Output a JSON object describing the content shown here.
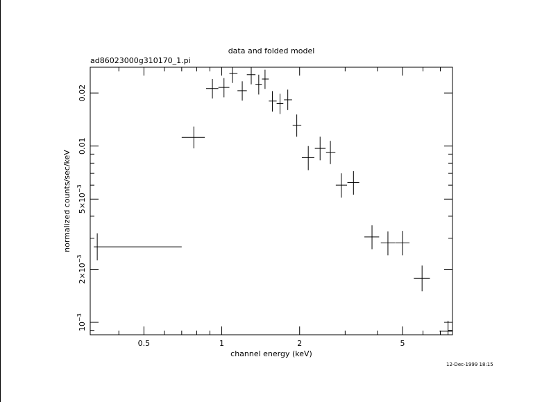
{
  "chart_data": {
    "type": "scatter",
    "title": "data and folded model",
    "subtitle": "ad86023000g310170_1.pi",
    "xlabel": "channel energy (keV)",
    "ylabel": "normalized counts/sec/keV",
    "timestamp": "12-Dec-1999 18:15",
    "x_scale": "log",
    "y_scale": "log",
    "xlim": [
      0.31,
      7.8
    ],
    "ylim": [
      0.00085,
      0.028
    ],
    "x_ticks": [
      {
        "value": 0.5,
        "label": "0.5"
      },
      {
        "value": 1,
        "label": "1"
      },
      {
        "value": 2,
        "label": "2"
      },
      {
        "value": 5,
        "label": "5"
      }
    ],
    "y_ticks": [
      {
        "value": 0.001,
        "label": "10",
        "sup": "−3"
      },
      {
        "value": 0.002,
        "label": "2×10",
        "sup": "−3"
      },
      {
        "value": 0.005,
        "label": "5×10",
        "sup": "−3"
      },
      {
        "value": 0.01,
        "label": "0.01",
        "sup": ""
      },
      {
        "value": 0.02,
        "label": "0.02",
        "sup": ""
      }
    ],
    "series": [
      {
        "points": [
          {
            "x": 0.33,
            "xlo": 0.32,
            "xhi": 0.7,
            "y": 0.00268,
            "ylo": 0.00225,
            "yhi": 0.0032
          },
          {
            "x": 0.78,
            "xlo": 0.7,
            "xhi": 0.86,
            "y": 0.0112,
            "ylo": 0.0097,
            "yhi": 0.0129
          },
          {
            "x": 0.92,
            "xlo": 0.87,
            "xhi": 0.97,
            "y": 0.0212,
            "ylo": 0.0186,
            "yhi": 0.024
          },
          {
            "x": 1.02,
            "xlo": 0.97,
            "xhi": 1.07,
            "y": 0.0215,
            "ylo": 0.0189,
            "yhi": 0.0243
          },
          {
            "x": 1.1,
            "xlo": 1.07,
            "xhi": 1.15,
            "y": 0.0258,
            "ylo": 0.0228,
            "yhi": 0.029
          },
          {
            "x": 1.2,
            "xlo": 1.15,
            "xhi": 1.25,
            "y": 0.0206,
            "ylo": 0.0181,
            "yhi": 0.0233
          },
          {
            "x": 1.3,
            "xlo": 1.25,
            "xhi": 1.35,
            "y": 0.0254,
            "ylo": 0.0224,
            "yhi": 0.0286
          },
          {
            "x": 1.39,
            "xlo": 1.35,
            "xhi": 1.43,
            "y": 0.0224,
            "ylo": 0.0196,
            "yhi": 0.0254
          },
          {
            "x": 1.47,
            "xlo": 1.43,
            "xhi": 1.52,
            "y": 0.024,
            "ylo": 0.0211,
            "yhi": 0.0271
          },
          {
            "x": 1.57,
            "xlo": 1.52,
            "xhi": 1.63,
            "y": 0.018,
            "ylo": 0.0157,
            "yhi": 0.0205
          },
          {
            "x": 1.68,
            "xlo": 1.63,
            "xhi": 1.73,
            "y": 0.0174,
            "ylo": 0.0152,
            "yhi": 0.0198
          },
          {
            "x": 1.8,
            "xlo": 1.74,
            "xhi": 1.87,
            "y": 0.0183,
            "ylo": 0.016,
            "yhi": 0.0209
          },
          {
            "x": 1.95,
            "xlo": 1.88,
            "xhi": 2.03,
            "y": 0.0131,
            "ylo": 0.0113,
            "yhi": 0.0151
          },
          {
            "x": 2.16,
            "xlo": 2.04,
            "xhi": 2.28,
            "y": 0.0086,
            "ylo": 0.0073,
            "yhi": 0.01
          },
          {
            "x": 2.4,
            "xlo": 2.29,
            "xhi": 2.52,
            "y": 0.0097,
            "ylo": 0.0083,
            "yhi": 0.0113
          },
          {
            "x": 2.63,
            "xlo": 2.53,
            "xhi": 2.75,
            "y": 0.0092,
            "ylo": 0.0079,
            "yhi": 0.0107
          },
          {
            "x": 2.9,
            "xlo": 2.76,
            "xhi": 3.05,
            "y": 0.006,
            "ylo": 0.0051,
            "yhi": 0.007
          },
          {
            "x": 3.23,
            "xlo": 3.06,
            "xhi": 3.4,
            "y": 0.0062,
            "ylo": 0.0053,
            "yhi": 0.0072
          },
          {
            "x": 3.81,
            "xlo": 3.56,
            "xhi": 4.06,
            "y": 0.00305,
            "ylo": 0.0026,
            "yhi": 0.00355
          },
          {
            "x": 4.39,
            "xlo": 4.12,
            "xhi": 4.67,
            "y": 0.00282,
            "ylo": 0.0024,
            "yhi": 0.00328
          },
          {
            "x": 5.0,
            "xlo": 4.68,
            "xhi": 5.32,
            "y": 0.00282,
            "ylo": 0.0024,
            "yhi": 0.0033
          },
          {
            "x": 5.95,
            "xlo": 5.53,
            "xhi": 6.38,
            "y": 0.00178,
            "ylo": 0.0015,
            "yhi": 0.0021
          },
          {
            "x": 7.5,
            "xlo": 6.95,
            "xhi": 7.85,
            "y": 0.00089,
            "ylo": 0.00077,
            "yhi": 0.00102
          }
        ]
      }
    ]
  }
}
